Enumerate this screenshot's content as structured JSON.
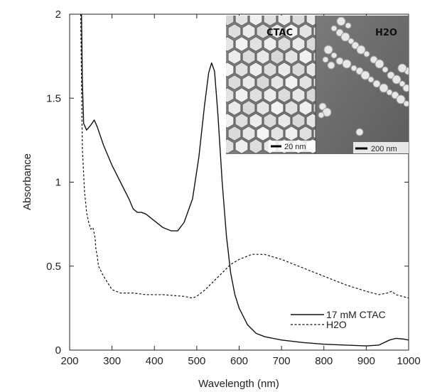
{
  "chart_data": {
    "type": "line",
    "title": "",
    "xlabel": "Wavelength (nm)",
    "ylabel": "Absorbance",
    "xlim": [
      200,
      1000
    ],
    "ylim": [
      0,
      2
    ],
    "xticks": [
      200,
      300,
      400,
      500,
      600,
      700,
      800,
      900,
      1000
    ],
    "yticks": [
      0,
      0.5,
      1,
      1.5,
      2
    ],
    "ytick_labels": [
      "0",
      "0.5",
      "1",
      "1.5",
      "2"
    ],
    "grid": false,
    "legend_position": "bottom-right",
    "series": [
      {
        "name": "17 mM CTAC",
        "style": "solid",
        "color": "#111111",
        "points": [
          [
            228,
            2.0
          ],
          [
            230,
            1.6
          ],
          [
            233,
            1.35
          ],
          [
            240,
            1.31
          ],
          [
            250,
            1.34
          ],
          [
            258,
            1.37
          ],
          [
            265,
            1.33
          ],
          [
            280,
            1.22
          ],
          [
            300,
            1.1
          ],
          [
            320,
            1.0
          ],
          [
            340,
            0.9
          ],
          [
            350,
            0.84
          ],
          [
            360,
            0.82
          ],
          [
            370,
            0.82
          ],
          [
            380,
            0.81
          ],
          [
            400,
            0.77
          ],
          [
            420,
            0.73
          ],
          [
            440,
            0.71
          ],
          [
            455,
            0.71
          ],
          [
            470,
            0.76
          ],
          [
            490,
            0.9
          ],
          [
            505,
            1.15
          ],
          [
            518,
            1.45
          ],
          [
            528,
            1.65
          ],
          [
            535,
            1.71
          ],
          [
            542,
            1.66
          ],
          [
            550,
            1.4
          ],
          [
            560,
            1.0
          ],
          [
            570,
            0.68
          ],
          [
            580,
            0.46
          ],
          [
            590,
            0.33
          ],
          [
            600,
            0.25
          ],
          [
            620,
            0.15
          ],
          [
            640,
            0.1
          ],
          [
            660,
            0.08
          ],
          [
            700,
            0.06
          ],
          [
            750,
            0.045
          ],
          [
            800,
            0.035
          ],
          [
            850,
            0.03
          ],
          [
            900,
            0.025
          ],
          [
            930,
            0.03
          ],
          [
            955,
            0.06
          ],
          [
            970,
            0.07
          ],
          [
            990,
            0.065
          ],
          [
            1000,
            0.06
          ]
        ]
      },
      {
        "name": "H2O",
        "style": "dashed",
        "color": "#111111",
        "points": [
          [
            226,
            2.0
          ],
          [
            230,
            1.2
          ],
          [
            235,
            0.95
          ],
          [
            240,
            0.82
          ],
          [
            245,
            0.76
          ],
          [
            250,
            0.72
          ],
          [
            255,
            0.73
          ],
          [
            260,
            0.67
          ],
          [
            262,
            0.6
          ],
          [
            265,
            0.56
          ],
          [
            268,
            0.5
          ],
          [
            272,
            0.48
          ],
          [
            280,
            0.44
          ],
          [
            290,
            0.4
          ],
          [
            300,
            0.36
          ],
          [
            320,
            0.34
          ],
          [
            350,
            0.34
          ],
          [
            380,
            0.33
          ],
          [
            420,
            0.33
          ],
          [
            470,
            0.32
          ],
          [
            490,
            0.31
          ],
          [
            500,
            0.32
          ],
          [
            520,
            0.36
          ],
          [
            540,
            0.41
          ],
          [
            560,
            0.46
          ],
          [
            580,
            0.51
          ],
          [
            600,
            0.54
          ],
          [
            630,
            0.57
          ],
          [
            660,
            0.57
          ],
          [
            700,
            0.54
          ],
          [
            750,
            0.49
          ],
          [
            800,
            0.44
          ],
          [
            850,
            0.39
          ],
          [
            900,
            0.35
          ],
          [
            930,
            0.33
          ],
          [
            950,
            0.34
          ],
          [
            960,
            0.35
          ],
          [
            970,
            0.33
          ],
          [
            1000,
            0.31
          ]
        ]
      }
    ]
  },
  "inset": {
    "left_label": "CTAC",
    "left_scale": "20 nm",
    "right_label": "H2O",
    "right_scale": "200 nm"
  }
}
